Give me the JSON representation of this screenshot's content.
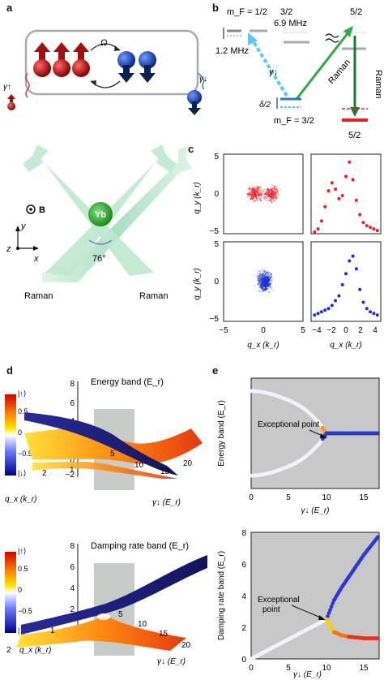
{
  "panel_labels": {
    "a": "a",
    "b": "b",
    "c": "c",
    "d": "d",
    "e": "e"
  },
  "panel_a": {
    "omega": "Ω",
    "gamma_up": "γ↑",
    "gamma_down": "γ↓",
    "atom_label": "Yb",
    "b_field": "B",
    "axis_y": "y",
    "axis_z": "z",
    "axis_x": "x",
    "angle": "76°",
    "beam_left": "Raman",
    "beam_right": "Raman"
  },
  "panel_b": {
    "mf_top": "m_F = 1/2",
    "level_32": "3/2",
    "freq_69": "6.9 MHz",
    "freq_12": "1.2 MHz",
    "level_52_top": "5/2",
    "gamma_down": "γ↓",
    "raman": "Raman",
    "raman2": "Raman",
    "delta": "δ/2",
    "mf_bottom": "m_F = 3/2",
    "level_52_bottom": "5/2"
  },
  "panel_c": {
    "ylabel": "q_y (k_r)",
    "xlabel": "q_x (k_r)",
    "yticks": [
      "5",
      "0",
      "−5"
    ],
    "xticks_left": [
      "−5",
      "0",
      "5"
    ],
    "xticks_right": [
      "−4",
      "−2",
      "0",
      "2",
      "4"
    ],
    "red_color": "#e8202a",
    "blue_color": "#1c2fd6"
  },
  "panel_d": {
    "top_title": "Energy band (E_r)",
    "bottom_title": "Damping rate band (E_r)",
    "colorbar_ticks": [
      "|↑⟩",
      "0.5",
      "0",
      "−0.5",
      "|↓⟩"
    ],
    "top_zticks": [
      "8",
      "6",
      "4",
      "2",
      "0",
      "−2"
    ],
    "top_gticks": [
      "5",
      "10",
      "15",
      "20"
    ],
    "bottom_zticks": [
      "8",
      "6",
      "4",
      "2"
    ],
    "bottom_gticks": [
      "5",
      "10",
      "15",
      "20"
    ],
    "qx_ticks_top": [
      "2",
      "1"
    ],
    "qx_ticks_bottom": [
      "2",
      "1"
    ],
    "qx_label": "q_x (k_r)",
    "gamma_label": "γ↓ (E_r)"
  },
  "panel_e": {
    "top_ylabel": "Energy band (E_r)",
    "bottom_ylabel": "Damping rate band (E_r)",
    "xlabel": "γ↓ (E_r)",
    "annotation": "Exceptional point",
    "xticks": [
      "0",
      "5",
      "10",
      "15"
    ],
    "bottom_yticks": [
      "0",
      "2",
      "4",
      "6",
      "8"
    ],
    "exceptional_point_gamma": 10,
    "bg_color": "#c8c8c8"
  },
  "chart_data": [
    {
      "type": "scatter",
      "series": [
        {
          "values_x": [
            -4.5,
            -4,
            -3.5,
            -3,
            -2.5,
            -2,
            -1.5,
            -1,
            -0.5,
            0,
            0.5,
            1,
            1.5,
            2,
            2.5,
            3,
            3.5,
            4,
            4.5
          ],
          "values_y": [
            0.1,
            0.3,
            0.8,
            1.7,
            2.7,
            3.2,
            2.8,
            2.2,
            2.4,
            3.6,
            4.5,
            3.4,
            2.1,
            1.2,
            0.7,
            0.5,
            0.4,
            0.3,
            0.2
          ]
        }
      ],
      "xlim": [
        -5,
        5
      ],
      "ylim": [
        0,
        5
      ]
    },
    {
      "type": "scatter",
      "series": [
        {
          "values_x": [
            -4.5,
            -4,
            -3.5,
            -3,
            -2.5,
            -2,
            -1.5,
            -1,
            -0.5,
            0,
            0.5,
            1,
            1.5,
            2,
            2.5,
            3,
            3.5,
            4,
            4.5
          ],
          "values_y": [
            0.4,
            0.5,
            0.6,
            0.7,
            0.8,
            1.0,
            1.3,
            1.6,
            2.3,
            3.0,
            3.8,
            4.1,
            3.3,
            2.0,
            1.2,
            0.8,
            0.6,
            0.5,
            0.4
          ]
        }
      ],
      "xlim": [
        -5,
        5
      ],
      "ylim": [
        0,
        5
      ]
    },
    {
      "type": "line",
      "x": [
        0,
        1,
        2,
        3,
        4,
        5,
        6,
        7,
        8,
        9,
        10,
        11,
        12,
        13,
        14,
        15,
        16,
        17
      ],
      "series": [
        {
          "values": [
            4.3,
            4.28,
            4.2,
            4.1,
            3.95,
            3.8,
            3.6,
            3.35,
            3.0,
            2.6,
            2.0,
            2.0,
            2.0,
            2.0,
            2.0,
            2.0,
            2.0,
            2.0
          ]
        },
        {
          "values": [
            -0.3,
            -0.28,
            -0.2,
            -0.1,
            0.05,
            0.2,
            0.4,
            0.65,
            1.0,
            1.4,
            2.0,
            2.0,
            2.0,
            2.0,
            2.0,
            2.0,
            2.0,
            2.0
          ]
        }
      ],
      "xlim": [
        0,
        17
      ]
    },
    {
      "type": "line",
      "x": [
        0,
        1,
        2,
        3,
        4,
        5,
        6,
        7,
        8,
        9,
        10,
        11,
        12,
        13,
        14,
        15,
        16,
        17
      ],
      "series": [
        {
          "values": [
            0,
            0.25,
            0.5,
            0.75,
            1.0,
            1.25,
            1.5,
            1.75,
            2.0,
            2.25,
            2.5,
            3.7,
            4.5,
            5.2,
            5.9,
            6.6,
            7.2,
            7.8
          ]
        },
        {
          "values": [
            0,
            0.25,
            0.5,
            0.75,
            1.0,
            1.25,
            1.5,
            1.75,
            2.0,
            2.25,
            2.5,
            1.7,
            1.5,
            1.4,
            1.35,
            1.3,
            1.3,
            1.3
          ]
        }
      ],
      "xlim": [
        0,
        17
      ],
      "ylim": [
        0,
        8
      ]
    }
  ]
}
